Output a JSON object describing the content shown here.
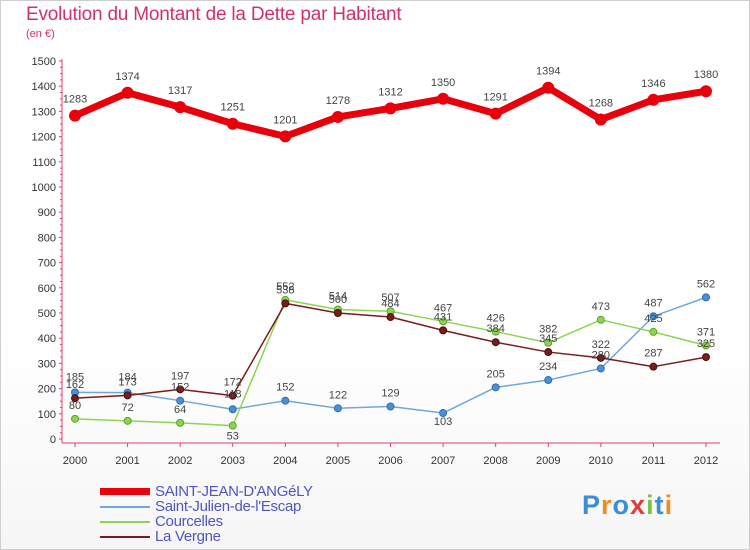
{
  "header": {
    "title": "Evolution du Montant de la Dette par Habitant",
    "subtitle": "(en €)"
  },
  "logo": {
    "text": "Proxiti",
    "letters": [
      {
        "ch": "P",
        "color": "#3a8fd6"
      },
      {
        "ch": "r",
        "color": "#f08a1e"
      },
      {
        "ch": "o",
        "color": "#3a8fd6"
      },
      {
        "ch": "x",
        "color": "#e23a3a"
      },
      {
        "ch": "i",
        "color": "#7cc242"
      },
      {
        "ch": "t",
        "color": "#3a8fd6"
      },
      {
        "ch": "i",
        "color": "#f08a1e"
      }
    ]
  },
  "chart_data": {
    "type": "line",
    "title": "Evolution du Montant de la Dette par Habitant",
    "subtitle": "(en €)",
    "x": [
      "2000",
      "2001",
      "2002",
      "2003",
      "2004",
      "2005",
      "2006",
      "2007",
      "2008",
      "2009",
      "2010",
      "2011",
      "2012"
    ],
    "ylim": [
      0,
      1500
    ],
    "yticks": [
      0,
      100,
      200,
      300,
      400,
      500,
      600,
      700,
      800,
      900,
      1000,
      1100,
      1200,
      1300,
      1400,
      1500
    ],
    "grid": false,
    "legend_position": "bottom-left",
    "series": [
      {
        "name": "SAINT-JEAN-D'ANGéLY",
        "color": "#e8000b",
        "values": [
          1283,
          1374,
          1317,
          1251,
          1201,
          1278,
          1312,
          1350,
          1291,
          1394,
          1268,
          1346,
          1380
        ]
      },
      {
        "name": "Saint-Julien-de-l'Escap",
        "color": "#6fa8dc",
        "values": [
          185,
          184,
          152,
          118,
          152,
          122,
          129,
          103,
          205,
          234,
          280,
          487,
          562
        ]
      },
      {
        "name": "Courcelles",
        "color": "#8ed453",
        "values": [
          80,
          72,
          64,
          53,
          552,
          514,
          507,
          467,
          426,
          382,
          473,
          425,
          371
        ]
      },
      {
        "name": "La Vergne",
        "color": "#7b1c1c",
        "values": [
          162,
          173,
          197,
          172,
          538,
          500,
          484,
          431,
          384,
          345,
          322,
          287,
          325
        ]
      }
    ]
  }
}
